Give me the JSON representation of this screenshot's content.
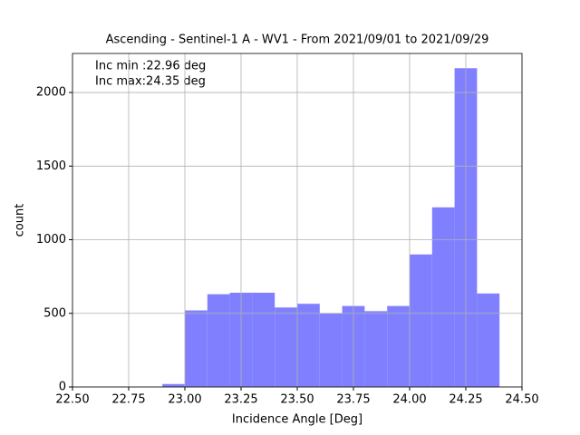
{
  "chart_data": {
    "type": "histogram",
    "title": "Ascending - Sentinel-1 A - WV1 - From 2021/09/01 to 2021/09/29",
    "x_label": "Incidence Angle [Deg]",
    "y_label": "count",
    "annotations": [
      "Inc min :22.96 deg",
      "Inc max:24.35 deg"
    ],
    "bins": [
      22.9,
      23.0,
      23.1,
      23.2,
      23.3,
      23.4,
      23.5,
      23.6,
      23.7,
      23.8,
      23.9,
      24.0,
      24.1,
      24.2,
      24.3,
      24.4
    ],
    "values": [
      20,
      520,
      630,
      640,
      640,
      540,
      565,
      500,
      550,
      515,
      550,
      900,
      1220,
      2165,
      635
    ],
    "color": "#8080ff",
    "xlim": [
      22.5,
      24.5
    ],
    "xticks": [
      {
        "value": 22.5,
        "label": "22.50"
      },
      {
        "value": 22.75,
        "label": "22.75"
      },
      {
        "value": 23.0,
        "label": "23.00"
      },
      {
        "value": 23.25,
        "label": "23.25"
      },
      {
        "value": 23.5,
        "label": "23.50"
      },
      {
        "value": 23.75,
        "label": "23.75"
      },
      {
        "value": 24.0,
        "label": "24.00"
      },
      {
        "value": 24.25,
        "label": "24.25"
      },
      {
        "value": 24.5,
        "label": "24.50"
      }
    ],
    "ylim": [
      0,
      2265
    ],
    "yticks": [
      0,
      500,
      1000,
      1500,
      2000
    ],
    "grid": true
  }
}
